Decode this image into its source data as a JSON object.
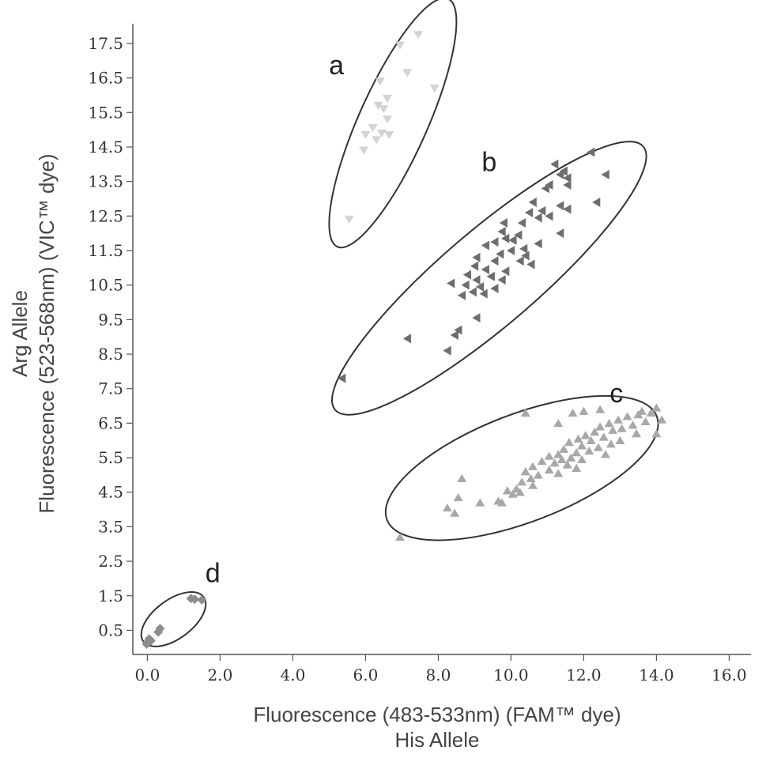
{
  "chart_data": {
    "type": "scatter",
    "xlabel": [
      "Fluorescence (483-533nm) (FAM™  dye)",
      "His Allele"
    ],
    "ylabel": [
      "Arg Allele",
      "Fluorescence (523-568nm) (VIC™  dye)"
    ],
    "xlim": [
      -0.4,
      16.6
    ],
    "ylim": [
      -0.2,
      18.3
    ],
    "x_ticks": [
      "0.0",
      "2.0",
      "4.0",
      "6.0",
      "8.0",
      "10.0",
      "12.0",
      "14.0",
      "16.0"
    ],
    "y_ticks": [
      "0.5",
      "1.5",
      "2.5",
      "3.5",
      "4.5",
      "5.5",
      "6.5",
      "7.5",
      "8.5",
      "9.5",
      "10.5",
      "11.5",
      "12.5",
      "13.5",
      "14.5",
      "15.5",
      "16.5",
      "17.5"
    ],
    "grid": false,
    "legend": "none",
    "colors": {
      "a": "#d3d3d3",
      "b": "#6e6e6e",
      "c": "#a8a8a8",
      "d": "#8c8c8c",
      "ellipse": "#333333"
    },
    "clusters": [
      {
        "label": "a",
        "marker": "triangle-down",
        "color": "#d3d3d3",
        "ellipse": {
          "cx": 6.75,
          "cy": 15.2,
          "rx": 3.9,
          "ry": 0.95,
          "angle_deg": 67
        },
        "points": [
          [
            7.45,
            17.75
          ],
          [
            6.95,
            17.45
          ],
          [
            7.15,
            16.65
          ],
          [
            6.4,
            16.4
          ],
          [
            7.9,
            16.2
          ],
          [
            6.6,
            15.9
          ],
          [
            6.35,
            15.7
          ],
          [
            6.5,
            15.6
          ],
          [
            6.6,
            15.3
          ],
          [
            6.2,
            15.05
          ],
          [
            6.0,
            14.85
          ],
          [
            6.65,
            14.85
          ],
          [
            6.3,
            14.7
          ],
          [
            6.45,
            14.9
          ],
          [
            5.95,
            14.4
          ],
          [
            5.55,
            12.4
          ]
        ]
      },
      {
        "label": "b",
        "marker": "triangle-left",
        "color": "#6e6e6e",
        "ellipse": {
          "cx": 9.4,
          "cy": 10.7,
          "rx": 5.7,
          "ry": 1.35,
          "angle_deg": 42
        },
        "points": [
          [
            12.2,
            14.35
          ],
          [
            11.2,
            14.0
          ],
          [
            11.35,
            13.7
          ],
          [
            11.55,
            13.6
          ],
          [
            11.45,
            13.8
          ],
          [
            12.6,
            13.7
          ],
          [
            11.05,
            13.4
          ],
          [
            10.95,
            13.3
          ],
          [
            11.55,
            13.4
          ],
          [
            12.35,
            12.9
          ],
          [
            10.6,
            12.9
          ],
          [
            11.35,
            12.8
          ],
          [
            11.55,
            12.7
          ],
          [
            10.85,
            12.65
          ],
          [
            10.5,
            12.6
          ],
          [
            11.05,
            12.5
          ],
          [
            10.75,
            12.45
          ],
          [
            10.3,
            12.3
          ],
          [
            9.8,
            12.3
          ],
          [
            9.75,
            12.05
          ],
          [
            11.35,
            12.0
          ],
          [
            10.2,
            11.95
          ],
          [
            9.85,
            11.85
          ],
          [
            9.55,
            11.75
          ],
          [
            10.05,
            11.8
          ],
          [
            10.75,
            11.7
          ],
          [
            9.3,
            11.65
          ],
          [
            10.35,
            11.55
          ],
          [
            10.0,
            11.5
          ],
          [
            9.7,
            11.4
          ],
          [
            10.4,
            11.35
          ],
          [
            9.05,
            11.3
          ],
          [
            9.55,
            11.2
          ],
          [
            10.25,
            11.2
          ],
          [
            10.55,
            11.1
          ],
          [
            9.0,
            11.05
          ],
          [
            9.3,
            10.95
          ],
          [
            9.85,
            10.9
          ],
          [
            8.8,
            10.8
          ],
          [
            9.45,
            10.75
          ],
          [
            9.05,
            10.65
          ],
          [
            9.75,
            10.65
          ],
          [
            8.35,
            10.55
          ],
          [
            8.75,
            10.5
          ],
          [
            9.15,
            10.45
          ],
          [
            8.95,
            10.3
          ],
          [
            8.65,
            10.2
          ],
          [
            9.25,
            10.25
          ],
          [
            9.55,
            10.4
          ],
          [
            9.05,
            9.55
          ],
          [
            8.55,
            9.2
          ],
          [
            8.45,
            9.05
          ],
          [
            7.15,
            8.95
          ],
          [
            8.25,
            8.6
          ],
          [
            5.35,
            7.8
          ]
        ]
      },
      {
        "label": "c",
        "marker": "triangle-up",
        "color": "#a8a8a8",
        "ellipse": {
          "cx": 10.3,
          "cy": 5.2,
          "rx": 4.0,
          "ry": 1.55,
          "angle_deg": 22
        },
        "points": [
          [
            14.0,
            6.95
          ],
          [
            13.6,
            6.85
          ],
          [
            13.85,
            6.8
          ],
          [
            13.5,
            6.75
          ],
          [
            13.2,
            6.7
          ],
          [
            14.15,
            6.6
          ],
          [
            12.95,
            6.6
          ],
          [
            13.7,
            6.55
          ],
          [
            12.7,
            6.5
          ],
          [
            13.35,
            6.45
          ],
          [
            12.45,
            6.4
          ],
          [
            13.05,
            6.35
          ],
          [
            12.8,
            6.3
          ],
          [
            12.3,
            6.25
          ],
          [
            13.45,
            6.2
          ],
          [
            14.0,
            6.2
          ],
          [
            12.05,
            6.15
          ],
          [
            12.55,
            6.1
          ],
          [
            11.85,
            6.05
          ],
          [
            13.0,
            6.0
          ],
          [
            12.2,
            6.0
          ],
          [
            11.6,
            5.95
          ],
          [
            12.75,
            5.9
          ],
          [
            11.95,
            5.85
          ],
          [
            12.4,
            5.8
          ],
          [
            11.45,
            5.75
          ],
          [
            12.15,
            5.7
          ],
          [
            11.8,
            5.65
          ],
          [
            11.3,
            5.6
          ],
          [
            12.6,
            5.6
          ],
          [
            11.05,
            5.55
          ],
          [
            11.65,
            5.5
          ],
          [
            11.95,
            5.45
          ],
          [
            11.4,
            5.45
          ],
          [
            10.85,
            5.4
          ],
          [
            11.2,
            5.35
          ],
          [
            11.55,
            5.3
          ],
          [
            10.6,
            5.25
          ],
          [
            11.8,
            5.2
          ],
          [
            11.05,
            5.15
          ],
          [
            10.4,
            5.1
          ],
          [
            10.75,
            5.0
          ],
          [
            11.3,
            5.05
          ],
          [
            10.55,
            4.9
          ],
          [
            10.3,
            4.8
          ],
          [
            10.15,
            4.6
          ],
          [
            10.6,
            4.7
          ],
          [
            10.25,
            4.5
          ],
          [
            9.9,
            4.55
          ],
          [
            10.05,
            4.45
          ],
          [
            9.65,
            4.25
          ],
          [
            9.15,
            4.2
          ],
          [
            9.75,
            4.2
          ],
          [
            8.65,
            4.9
          ],
          [
            8.55,
            4.35
          ],
          [
            8.25,
            4.05
          ],
          [
            8.45,
            3.9
          ],
          [
            12.0,
            6.85
          ],
          [
            11.7,
            6.8
          ],
          [
            11.3,
            6.5
          ],
          [
            12.45,
            6.9
          ],
          [
            10.4,
            6.8
          ],
          [
            6.95,
            3.2
          ]
        ]
      },
      {
        "label": "d",
        "marker": "diamond",
        "color": "#8c8c8c",
        "ellipse": {
          "cx": 0.72,
          "cy": 0.82,
          "rx": 1.05,
          "ry": 0.55,
          "angle_deg": 38
        },
        "points": [
          [
            1.3,
            1.4
          ],
          [
            1.5,
            1.38
          ],
          [
            1.2,
            1.42
          ],
          [
            0.35,
            0.55
          ],
          [
            0.3,
            0.45
          ],
          [
            0.05,
            0.25
          ],
          [
            0.0,
            0.15
          ],
          [
            0.1,
            0.2
          ],
          [
            -0.02,
            0.1
          ]
        ]
      }
    ]
  }
}
